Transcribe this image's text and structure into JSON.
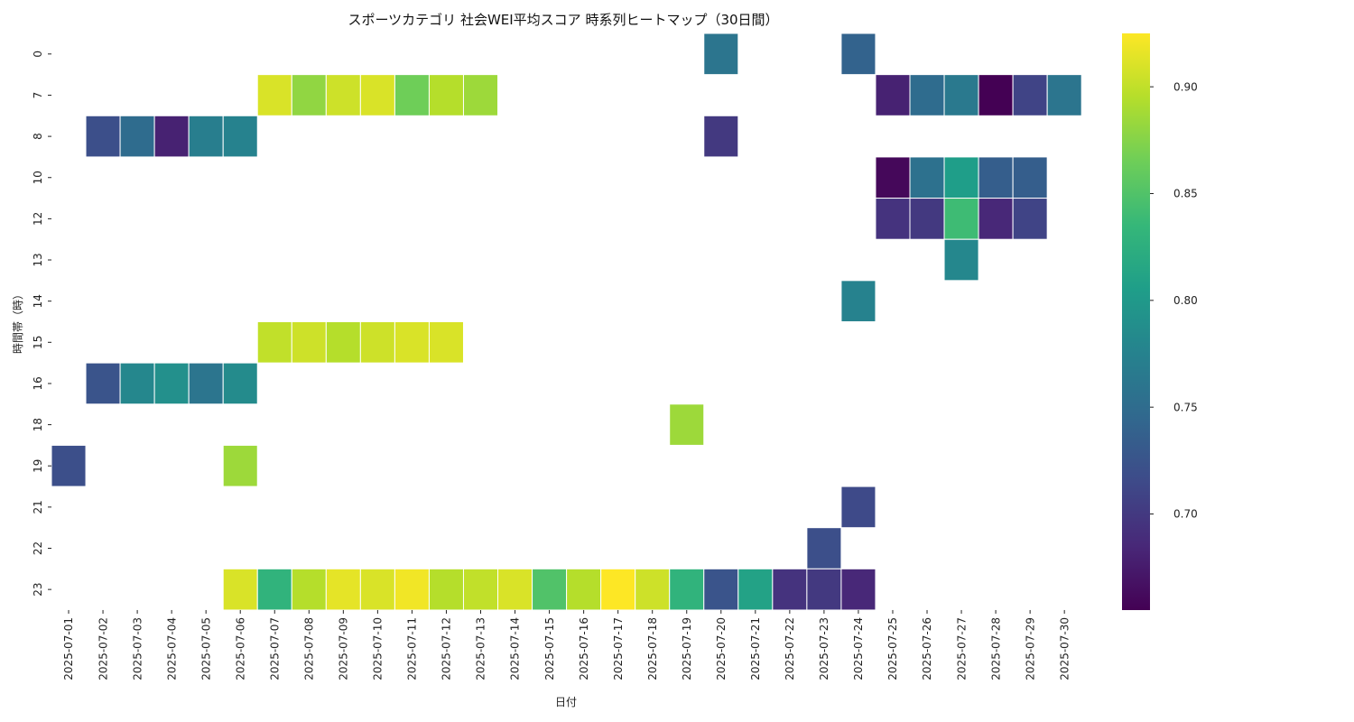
{
  "chart_data": {
    "type": "heatmap",
    "title": "スポーツカテゴリ 社会WEI平均スコア 時系列ヒートマップ（30日間）",
    "xlabel": "日付",
    "ylabel": "時間帯（時）",
    "x": [
      "2025-07-01",
      "2025-07-02",
      "2025-07-03",
      "2025-07-04",
      "2025-07-05",
      "2025-07-06",
      "2025-07-07",
      "2025-07-08",
      "2025-07-09",
      "2025-07-10",
      "2025-07-11",
      "2025-07-12",
      "2025-07-13",
      "2025-07-14",
      "2025-07-15",
      "2025-07-16",
      "2025-07-17",
      "2025-07-18",
      "2025-07-19",
      "2025-07-20",
      "2025-07-21",
      "2025-07-22",
      "2025-07-23",
      "2025-07-24",
      "2025-07-25",
      "2025-07-26",
      "2025-07-27",
      "2025-07-28",
      "2025-07-29",
      "2025-07-30"
    ],
    "y": [
      "0",
      "7",
      "8",
      "10",
      "12",
      "13",
      "14",
      "15",
      "16",
      "18",
      "19",
      "21",
      "22",
      "23"
    ],
    "values": [
      [
        null,
        null,
        null,
        null,
        null,
        null,
        null,
        null,
        null,
        null,
        null,
        null,
        null,
        null,
        null,
        null,
        null,
        null,
        null,
        0.76,
        null,
        null,
        null,
        0.74,
        null,
        null,
        null,
        null,
        null,
        null
      ],
      [
        null,
        null,
        null,
        null,
        null,
        null,
        0.91,
        0.88,
        0.905,
        0.91,
        0.865,
        0.895,
        0.885,
        null,
        null,
        null,
        null,
        null,
        null,
        null,
        null,
        null,
        null,
        null,
        0.68,
        0.75,
        0.765,
        0.655,
        0.71,
        0.76
      ],
      [
        null,
        0.72,
        0.75,
        0.68,
        0.77,
        0.775,
        null,
        null,
        null,
        null,
        null,
        null,
        null,
        null,
        null,
        null,
        null,
        null,
        null,
        0.7,
        null,
        null,
        null,
        null,
        null,
        null,
        null,
        null,
        null,
        null
      ],
      [
        null,
        null,
        null,
        null,
        null,
        null,
        null,
        null,
        null,
        null,
        null,
        null,
        null,
        null,
        null,
        null,
        null,
        null,
        null,
        null,
        null,
        null,
        null,
        null,
        0.66,
        0.755,
        0.805,
        0.735,
        0.735,
        null
      ],
      [
        null,
        null,
        null,
        null,
        null,
        null,
        null,
        null,
        null,
        null,
        null,
        null,
        null,
        null,
        null,
        null,
        null,
        null,
        null,
        null,
        null,
        null,
        null,
        null,
        0.695,
        0.7,
        0.84,
        0.685,
        0.71,
        null
      ],
      [
        null,
        null,
        null,
        null,
        null,
        null,
        null,
        null,
        null,
        null,
        null,
        null,
        null,
        null,
        null,
        null,
        null,
        null,
        null,
        null,
        null,
        null,
        null,
        null,
        null,
        null,
        0.78,
        null,
        null,
        null
      ],
      [
        null,
        null,
        null,
        null,
        null,
        null,
        null,
        null,
        null,
        null,
        null,
        null,
        null,
        null,
        null,
        null,
        null,
        null,
        null,
        null,
        null,
        null,
        null,
        0.775,
        null,
        null,
        null,
        null,
        null,
        null
      ],
      [
        null,
        null,
        null,
        null,
        null,
        null,
        0.9,
        0.905,
        0.895,
        0.905,
        0.91,
        0.91,
        null,
        null,
        null,
        null,
        null,
        null,
        null,
        null,
        null,
        null,
        null,
        null,
        null,
        null,
        null,
        null,
        null,
        null
      ],
      [
        null,
        0.725,
        0.78,
        0.79,
        0.76,
        0.785,
        null,
        null,
        null,
        null,
        null,
        null,
        null,
        null,
        null,
        null,
        null,
        null,
        null,
        null,
        null,
        null,
        null,
        null,
        null,
        null,
        null,
        null,
        null,
        null
      ],
      [
        null,
        null,
        null,
        null,
        null,
        null,
        null,
        null,
        null,
        null,
        null,
        null,
        null,
        null,
        null,
        null,
        null,
        null,
        0.885,
        null,
        null,
        null,
        null,
        null,
        null,
        null,
        null,
        null,
        null,
        null
      ],
      [
        0.72,
        null,
        null,
        null,
        null,
        0.885,
        null,
        null,
        null,
        null,
        null,
        null,
        null,
        null,
        null,
        null,
        null,
        null,
        null,
        null,
        null,
        null,
        null,
        null,
        null,
        null,
        null,
        null,
        null,
        null
      ],
      [
        null,
        null,
        null,
        null,
        null,
        null,
        null,
        null,
        null,
        null,
        null,
        null,
        null,
        null,
        null,
        null,
        null,
        null,
        null,
        null,
        null,
        null,
        null,
        0.715,
        null,
        null,
        null,
        null,
        null,
        null
      ],
      [
        null,
        null,
        null,
        null,
        null,
        null,
        null,
        null,
        null,
        null,
        null,
        null,
        null,
        null,
        null,
        null,
        null,
        null,
        null,
        null,
        null,
        null,
        0.72,
        null,
        null,
        null,
        null,
        null,
        null,
        null
      ],
      [
        null,
        null,
        null,
        null,
        null,
        0.91,
        0.83,
        0.895,
        0.915,
        0.91,
        0.92,
        0.895,
        0.9,
        0.91,
        0.85,
        0.895,
        0.925,
        0.905,
        0.83,
        0.725,
        0.81,
        0.695,
        0.7,
        0.685,
        null,
        null,
        null,
        null,
        null,
        null
      ]
    ],
    "colormap": "viridis",
    "vmin": 0.655,
    "vmax": 0.925,
    "colorbar_ticks": [
      "0.70",
      "0.75",
      "0.80",
      "0.85",
      "0.90"
    ]
  }
}
